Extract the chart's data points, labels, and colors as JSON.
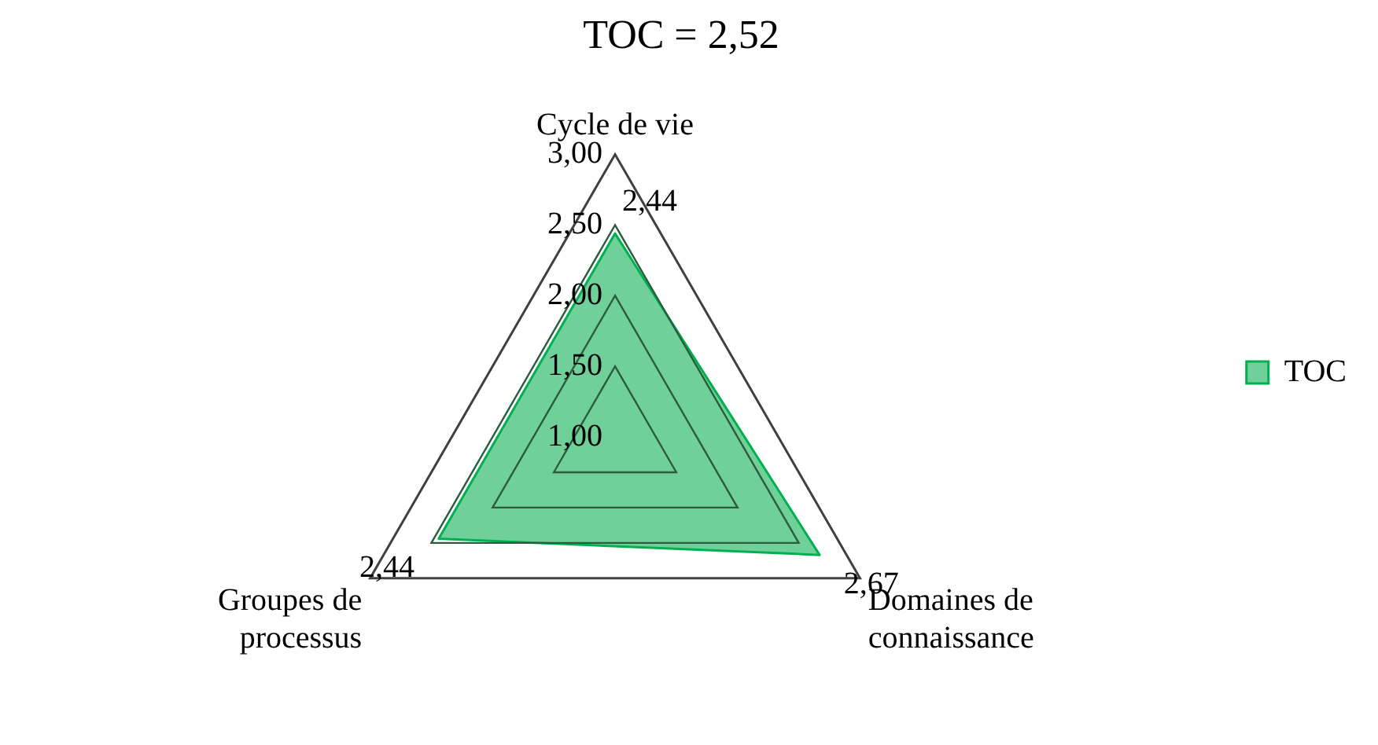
{
  "chart_data": {
    "type": "radar",
    "title": "TOC = 2,52",
    "categories": [
      "Cycle de vie",
      "Domaines de connaissance",
      "Groupes de processus"
    ],
    "series": [
      {
        "name": "TOC",
        "color": "#70d09a",
        "values": [
          2.44,
          2.67,
          2.44
        ],
        "value_labels": [
          "2,44",
          "2,67",
          "2,44"
        ]
      }
    ],
    "ylim": [
      1,
      3
    ],
    "yticks": [
      {
        "value": 1,
        "label": "1,00"
      },
      {
        "value": 1.5,
        "label": "1,50"
      },
      {
        "value": 2,
        "label": "2,00"
      },
      {
        "value": 2.5,
        "label": "2,50"
      },
      {
        "value": 3,
        "label": "3,00"
      }
    ],
    "grid": true,
    "legend": "right"
  }
}
